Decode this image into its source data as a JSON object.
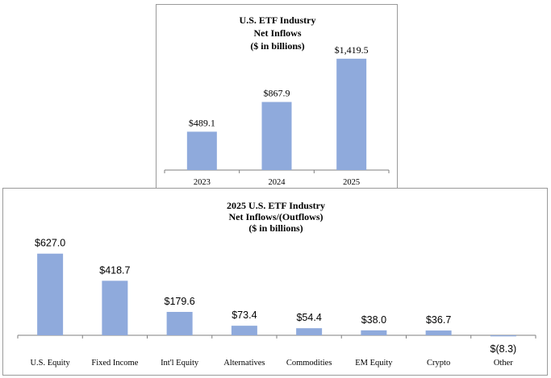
{
  "chart_data": [
    {
      "type": "bar",
      "title": [
        "U.S. ETF Industry",
        "Net Inflows",
        "($ in billions)"
      ],
      "categories": [
        "2023",
        "2024",
        "2025"
      ],
      "values": [
        489.1,
        867.9,
        1419.5
      ],
      "data_labels": [
        "$489.1",
        "$867.9",
        "$1,419.5"
      ],
      "bar_color": "#8faadc",
      "ylim": [
        0,
        1500
      ],
      "grid": false,
      "legend": "none"
    },
    {
      "type": "bar",
      "title": [
        "2025 U.S. ETF Industry",
        "Net Inflows/(Outflows)",
        "($ in billions)"
      ],
      "categories": [
        "U.S. Equity",
        "Fixed Income",
        "Int'l Equity",
        "Alternatives",
        "Commodities",
        "EM Equity",
        "Crypto",
        "Other"
      ],
      "values": [
        627.0,
        418.7,
        179.6,
        73.4,
        54.4,
        38.0,
        36.7,
        -8.3
      ],
      "data_labels": [
        "$627.0",
        "$418.7",
        "$179.6",
        "$73.4",
        "$54.4",
        "$38.0",
        "$36.7",
        "$(8.3)"
      ],
      "bar_color": "#8faadc",
      "ylim": [
        -10,
        640
      ],
      "grid": false,
      "legend": "none"
    }
  ]
}
